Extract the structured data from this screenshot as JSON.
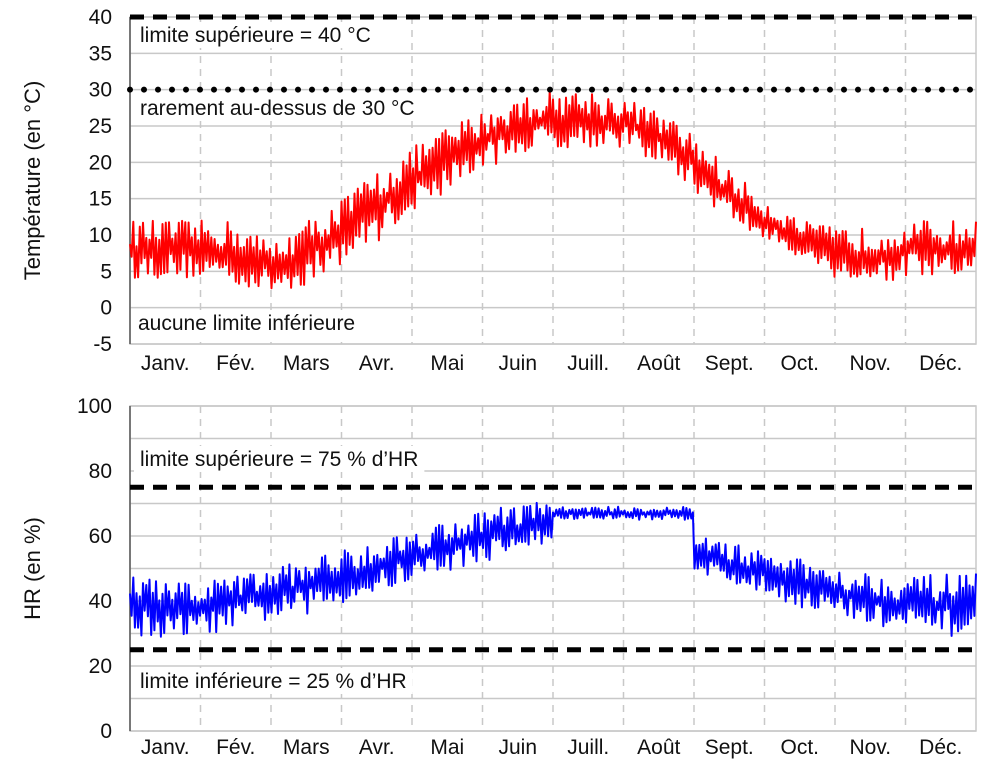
{
  "chart_data": [
    {
      "type": "line",
      "ylabel": "Température (en °C)",
      "ylim": [
        -5,
        40
      ],
      "yticks": [
        40,
        35,
        30,
        25,
        20,
        15,
        10,
        5,
        0,
        -5
      ],
      "categories": [
        "Janv.",
        "Fév.",
        "Mars",
        "Avr.",
        "Mai",
        "Juin",
        "Juill.",
        "Août",
        "Sept.",
        "Oct.",
        "Nov.",
        "Déc."
      ],
      "grid": true,
      "series": [
        {
          "color": "#ff0000",
          "x_month": [
            0.0,
            0.5,
            1.0,
            1.5,
            2.0,
            2.5,
            3.0,
            3.5,
            4.0,
            4.5,
            5.0,
            5.5,
            6.0,
            6.5,
            7.0,
            7.5,
            8.0,
            8.5,
            9.0,
            9.5,
            10.0,
            10.5,
            11.0,
            11.5,
            12.0
          ],
          "min": [
            4,
            4,
            4,
            3,
            2,
            3,
            6,
            9,
            13,
            16,
            19,
            21,
            22,
            22,
            22,
            20,
            16,
            12,
            9,
            7,
            4,
            3,
            4,
            4,
            4
          ],
          "max": [
            12,
            12,
            12,
            12,
            9,
            12,
            15,
            19,
            22,
            25,
            27,
            29,
            30,
            30,
            29,
            27,
            24,
            19,
            15,
            12,
            11,
            11,
            12,
            12,
            12
          ]
        }
      ],
      "reference_lines": [
        {
          "value": 40,
          "style": "dashed",
          "label": "limite supérieure = 40 °C"
        },
        {
          "value": 30,
          "style": "dotted",
          "label": "rarement au-dessus de 30 °C"
        }
      ],
      "annotations": [
        "aucune limite inférieure"
      ]
    },
    {
      "type": "line",
      "ylabel": "HR (en %)",
      "ylim": [
        0,
        100
      ],
      "yticks": [
        100,
        80,
        60,
        40,
        20,
        0
      ],
      "categories": [
        "Janv.",
        "Fév.",
        "Mars",
        "Avr.",
        "Mai",
        "Juin",
        "Juill.",
        "Août",
        "Sept.",
        "Oct.",
        "Nov.",
        "Déc."
      ],
      "grid": true,
      "series": [
        {
          "color": "#0000ff",
          "x_month": [
            0.0,
            0.5,
            1.0,
            1.5,
            2.0,
            2.5,
            3.0,
            3.5,
            4.0,
            4.5,
            5.0,
            5.5,
            5.98,
            6.0,
            7.0,
            7.98,
            8.0,
            8.5,
            9.0,
            9.5,
            10.0,
            10.5,
            11.0,
            11.5,
            12.0
          ],
          "min": [
            30,
            28,
            29,
            32,
            34,
            36,
            39,
            42,
            46,
            49,
            52,
            55,
            57,
            65,
            65,
            65,
            49,
            45,
            42,
            38,
            35,
            32,
            30,
            29,
            29
          ],
          "max": [
            49,
            46,
            46,
            48,
            50,
            53,
            56,
            59,
            62,
            65,
            68,
            70,
            71,
            69,
            69,
            69,
            62,
            58,
            55,
            53,
            51,
            49,
            48,
            48,
            49
          ]
        }
      ],
      "reference_lines": [
        {
          "value": 75,
          "style": "dashed",
          "label": "limite supérieure = 75 % d’HR"
        },
        {
          "value": 25,
          "style": "dashed",
          "label": "limite inférieure = 25 % d’HR"
        }
      ],
      "annotations": []
    }
  ]
}
